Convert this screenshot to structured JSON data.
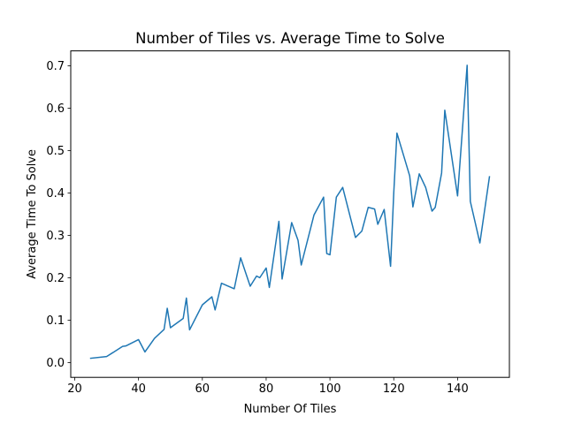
{
  "chart_data": {
    "type": "line",
    "title": "Number of Tiles vs. Average Time to Solve",
    "xlabel": "Number Of Tiles",
    "ylabel": "Average Time To Solve",
    "xlim": [
      18.75,
      156.25
    ],
    "ylim": [
      -0.035,
      0.735
    ],
    "xticks": [
      20,
      40,
      60,
      80,
      100,
      120,
      140
    ],
    "xtick_labels": [
      "20",
      "40",
      "60",
      "80",
      "100",
      "120",
      "140"
    ],
    "yticks": [
      0.0,
      0.1,
      0.2,
      0.3,
      0.4,
      0.5,
      0.6,
      0.7
    ],
    "ytick_labels": [
      "0.0",
      "0.1",
      "0.2",
      "0.3",
      "0.4",
      "0.5",
      "0.6",
      "0.7"
    ],
    "grid": false,
    "legend": "none",
    "series": [
      {
        "color": "#1f77b4",
        "x": [
          25,
          30,
          35,
          36,
          40,
          42,
          45,
          48,
          49,
          50,
          54,
          55,
          56,
          60,
          63,
          64,
          66,
          70,
          72,
          75,
          77,
          78,
          80,
          81,
          84,
          85,
          88,
          90,
          91,
          95,
          98,
          99,
          100,
          102,
          104,
          108,
          110,
          112,
          114,
          115,
          117,
          119,
          120,
          121,
          125,
          126,
          128,
          130,
          132,
          133,
          135,
          136,
          140,
          143,
          144,
          147,
          150
        ],
        "y": [
          0.01,
          0.014,
          0.038,
          0.039,
          0.054,
          0.025,
          0.057,
          0.078,
          0.128,
          0.082,
          0.104,
          0.152,
          0.077,
          0.136,
          0.155,
          0.124,
          0.187,
          0.174,
          0.247,
          0.18,
          0.204,
          0.2,
          0.223,
          0.177,
          0.333,
          0.197,
          0.33,
          0.288,
          0.23,
          0.348,
          0.39,
          0.257,
          0.254,
          0.39,
          0.413,
          0.295,
          0.31,
          0.366,
          0.362,
          0.326,
          0.361,
          0.227,
          0.4,
          0.541,
          0.44,
          0.367,
          0.445,
          0.413,
          0.357,
          0.366,
          0.447,
          0.595,
          0.393,
          0.701,
          0.38,
          0.282,
          0.438
        ]
      }
    ]
  }
}
